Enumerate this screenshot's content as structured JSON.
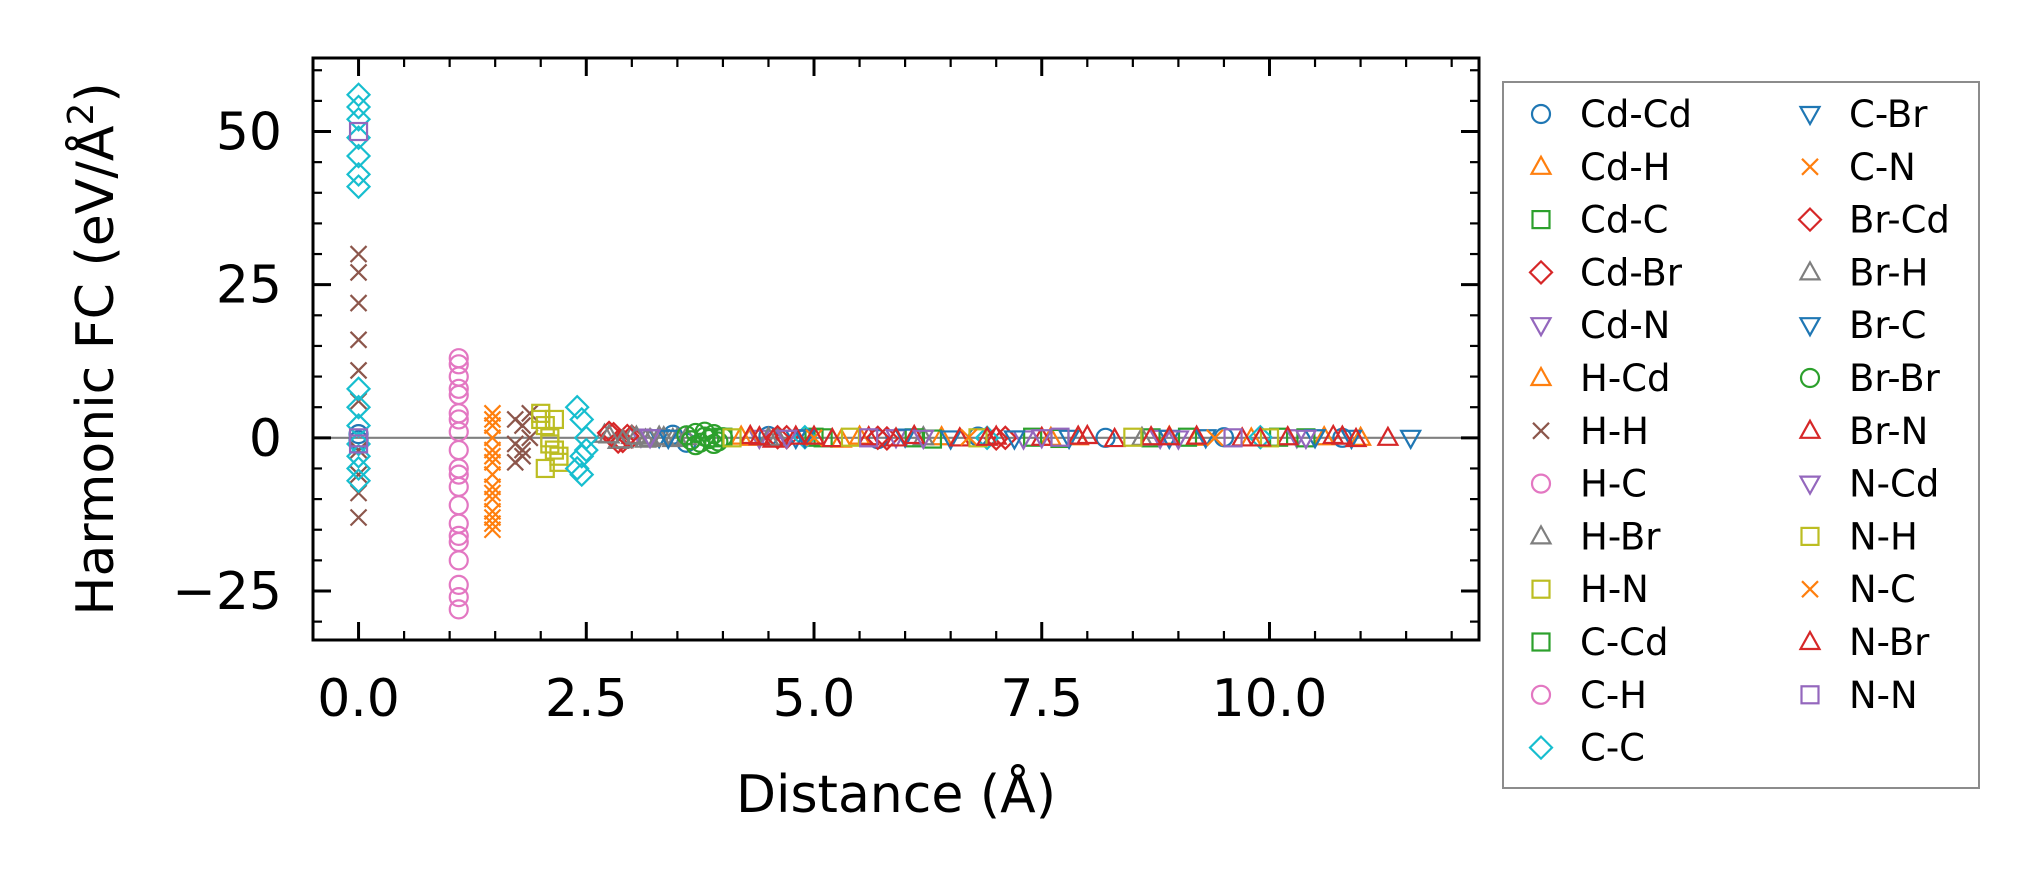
{
  "chart_data": {
    "type": "scatter",
    "title": "",
    "xlabel": "Distance (Å)",
    "ylabel_main": "Harmonic FC (eV/Å",
    "ylabel_sup": "2",
    "ylabel_close": ")",
    "xlim": [
      -0.5,
      12.3
    ],
    "ylim": [
      -33,
      62
    ],
    "xticks": [
      0.0,
      2.5,
      5.0,
      7.5,
      10.0
    ],
    "xtick_labels": [
      "0.0",
      "2.5",
      "5.0",
      "7.5",
      "10.0"
    ],
    "yticks": [
      -25,
      0,
      25,
      50
    ],
    "ytick_labels": [
      "−25",
      "0",
      "25",
      "50"
    ],
    "zero_line": 0,
    "legend_position": "outside-right",
    "series": [
      {
        "name": "Cd-Cd",
        "marker": "circle",
        "color": "#1f77b4",
        "x": [
          0.0,
          0.0,
          3.45,
          3.6,
          4.5,
          5.7,
          6.8,
          8.2,
          9.5,
          10.8
        ],
        "y": [
          0.6,
          -0.4,
          0.5,
          -0.8,
          0.3,
          -0.2,
          0.2,
          0.0,
          0.1,
          0.0
        ]
      },
      {
        "name": "Cd-H",
        "marker": "triangle-up",
        "color": "#ff7f0e",
        "x": [
          4.2,
          5.3,
          6.4,
          7.6,
          8.9,
          9.8,
          11.0
        ],
        "y": [
          0.2,
          -0.3,
          0.1,
          0.0,
          0.2,
          -0.1,
          0.0
        ]
      },
      {
        "name": "Cd-C",
        "marker": "square",
        "color": "#2ca02c",
        "x": [
          4.0,
          5.1,
          6.3,
          7.4,
          8.7,
          10.1
        ],
        "y": [
          0.1,
          0.0,
          -0.2,
          0.1,
          0.0,
          0.1
        ]
      },
      {
        "name": "Cd-Br",
        "marker": "diamond",
        "color": "#d62728",
        "x": [
          2.8,
          2.9,
          3.0,
          4.7,
          5.8,
          7.1
        ],
        "y": [
          0.6,
          -0.5,
          0.2,
          0.1,
          -0.1,
          0.0
        ]
      },
      {
        "name": "Cd-N",
        "marker": "triangle-down",
        "color": "#9467bd",
        "x": [
          3.1,
          4.4,
          5.9,
          7.3,
          8.8,
          10.3
        ],
        "y": [
          0.2,
          0.0,
          0.1,
          -0.1,
          0.0,
          0.1
        ]
      },
      {
        "name": "H-Cd",
        "marker": "triangle-up",
        "color": "#ff7f0e",
        "x": [
          4.3,
          5.5,
          6.6,
          7.9,
          9.2,
          10.6
        ],
        "y": [
          0.0,
          0.2,
          -0.1,
          0.1,
          0.0,
          0.1
        ]
      },
      {
        "name": "H-H",
        "marker": "x",
        "color": "#8c564b",
        "x": [
          0.0,
          0.0,
          0.0,
          0.0,
          0.0,
          0.0,
          0.0,
          0.0,
          0.0,
          0.0,
          1.72,
          1.72,
          1.72,
          1.8,
          1.8,
          1.8,
          1.88,
          1.88
        ],
        "y": [
          30,
          27,
          22,
          16,
          11,
          6,
          -2,
          -6,
          -9,
          -13,
          3,
          -1,
          -4,
          2,
          -2,
          -3,
          4,
          0
        ]
      },
      {
        "name": "H-C",
        "marker": "circle",
        "color": "#e377c2",
        "x": [
          1.1,
          1.1,
          1.1,
          1.1,
          1.1,
          1.1,
          1.1,
          1.1,
          1.1,
          1.1,
          1.1,
          1.1,
          1.1,
          1.1
        ],
        "y": [
          13,
          10,
          7,
          4,
          1,
          -2,
          -5,
          -8,
          -11,
          -14,
          -17,
          -20,
          -24,
          -28
        ]
      },
      {
        "name": "H-Br",
        "marker": "triangle-up",
        "color": "#7f7f7f",
        "x": [
          2.7,
          2.85,
          3.0,
          3.15,
          3.3,
          3.45,
          3.6,
          4.6,
          6.2,
          8.6
        ],
        "y": [
          0.5,
          -0.5,
          0.3,
          -0.3,
          0.2,
          -0.2,
          0.1,
          0.0,
          0.1,
          0.0
        ]
      },
      {
        "name": "H-N",
        "marker": "square",
        "color": "#bcbd22",
        "x": [
          2.0,
          2.05,
          2.1,
          2.15,
          2.2,
          2.05,
          2.15
        ],
        "y": [
          4,
          2,
          0,
          -2,
          -4,
          -5,
          3
        ]
      },
      {
        "name": "C-Cd",
        "marker": "square",
        "color": "#2ca02c",
        "x": [
          3.9,
          5.0,
          6.1,
          7.7,
          9.1,
          10.4
        ],
        "y": [
          0.0,
          0.1,
          0.0,
          -0.1,
          0.1,
          0.0
        ]
      },
      {
        "name": "C-H",
        "marker": "circle",
        "color": "#e377c2",
        "x": [
          1.1,
          1.1,
          1.1,
          1.1,
          1.1,
          1.1
        ],
        "y": [
          12,
          8,
          3,
          -6,
          -16,
          -26
        ]
      },
      {
        "name": "C-C",
        "marker": "diamond",
        "color": "#17becf",
        "x": [
          0.0,
          0.0,
          0.0,
          0.0,
          0.0,
          0.0,
          0.0,
          0.0,
          0.0,
          0.0,
          0.0,
          0.0,
          0.0,
          0.0,
          2.4,
          2.45,
          2.5,
          2.45,
          2.4,
          2.5,
          2.45,
          4.9,
          6.9,
          9.9
        ],
        "y": [
          56,
          54,
          52,
          49,
          46,
          43,
          41,
          8,
          5,
          2,
          -1,
          -3,
          -5,
          -7,
          5,
          3,
          0,
          -3,
          -5,
          -2,
          -6,
          0.1,
          0.0,
          0.1
        ]
      },
      {
        "name": "C-Br",
        "marker": "triangle-down",
        "color": "#1f77b4",
        "x": [
          3.3,
          4.8,
          6.0,
          7.2,
          8.9,
          10.5,
          11.55
        ],
        "y": [
          0.1,
          0.0,
          0.2,
          -0.1,
          0.0,
          0.1,
          0.0
        ]
      },
      {
        "name": "C-N",
        "marker": "x",
        "color": "#ff7f0e",
        "x": [
          1.47,
          1.47,
          1.47,
          1.47,
          1.47,
          1.47,
          1.47,
          1.47,
          1.47,
          1.47,
          1.47
        ],
        "y": [
          4,
          2,
          0,
          -2,
          -4,
          -6,
          -8,
          -10,
          -12,
          -14,
          -15
        ]
      },
      {
        "name": "Br-Cd",
        "marker": "diamond",
        "color": "#d62728",
        "x": [
          2.75,
          2.85,
          2.95,
          4.6,
          5.7,
          7.0
        ],
        "y": [
          0.8,
          -0.6,
          0.3,
          0.1,
          0.0,
          -0.1
        ]
      },
      {
        "name": "Br-H",
        "marker": "triangle-up",
        "color": "#7f7f7f",
        "x": [
          2.75,
          2.9,
          3.05,
          3.2,
          3.35,
          3.5,
          4.5
        ],
        "y": [
          0.4,
          -0.4,
          0.2,
          -0.2,
          0.1,
          -0.1,
          0.0
        ]
      },
      {
        "name": "Br-C",
        "marker": "triangle-down",
        "color": "#1f77b4",
        "x": [
          3.4,
          4.9,
          6.5,
          7.8,
          9.3,
          10.9
        ],
        "y": [
          0.0,
          0.1,
          -0.1,
          0.0,
          0.1,
          0.0
        ]
      },
      {
        "name": "Br-Br",
        "marker": "circle",
        "color": "#2ca02c",
        "x": [
          3.6,
          3.65,
          3.7,
          3.75,
          3.8,
          3.85,
          3.9,
          3.95,
          4.0,
          3.7,
          3.8,
          3.9
        ],
        "y": [
          0.4,
          -0.4,
          0.8,
          -0.8,
          0.2,
          -0.2,
          0.6,
          -0.6,
          0.1,
          -1.2,
          1.0,
          -1.0
        ]
      },
      {
        "name": "Br-N",
        "marker": "triangle-up",
        "color": "#d62728",
        "x": [
          4.3,
          4.55,
          4.8,
          5.2,
          5.6,
          6.1,
          6.6,
          7.0,
          7.5,
          8.0,
          8.3,
          8.7,
          9.2,
          9.7,
          10.2,
          10.7,
          10.95,
          11.3
        ],
        "y": [
          0.3,
          -0.3,
          0.2,
          -0.2,
          0.1,
          0.3,
          -0.1,
          0.2,
          0.0,
          0.3,
          -0.2,
          0.1,
          0.2,
          -0.1,
          0.1,
          0.3,
          -0.2,
          0.0
        ]
      },
      {
        "name": "N-Cd",
        "marker": "triangle-down",
        "color": "#9467bd",
        "x": [
          3.2,
          4.7,
          6.2,
          7.5,
          9.0,
          10.4
        ],
        "y": [
          0.1,
          0.0,
          0.0,
          0.1,
          -0.1,
          0.0
        ]
      },
      {
        "name": "N-H",
        "marker": "square",
        "color": "#bcbd22",
        "x": [
          2.0,
          2.1,
          2.2,
          4.1,
          5.4,
          6.8,
          8.5,
          10.0
        ],
        "y": [
          3,
          -1,
          -3,
          0.0,
          0.1,
          0.0,
          0.1,
          0.0
        ]
      },
      {
        "name": "N-C",
        "marker": "x",
        "color": "#ff7f0e",
        "x": [
          1.47,
          1.47,
          1.47,
          1.47,
          5.0,
          6.7,
          9.4
        ],
        "y": [
          3,
          -3,
          -9,
          -13,
          0.0,
          0.1,
          0.0
        ]
      },
      {
        "name": "N-Br",
        "marker": "triangle-up",
        "color": "#d62728",
        "x": [
          4.4,
          5.0,
          5.9,
          6.9,
          7.9,
          8.9,
          9.9,
          10.8
        ],
        "y": [
          0.1,
          0.2,
          -0.1,
          0.0,
          0.2,
          0.1,
          -0.1,
          0.2
        ]
      },
      {
        "name": "N-N",
        "marker": "square",
        "color": "#9467bd",
        "x": [
          0.0,
          0.0,
          0.0,
          5.6,
          7.7,
          9.6
        ],
        "y": [
          50,
          0,
          -1,
          0.0,
          0.1,
          0.0
        ]
      }
    ]
  }
}
